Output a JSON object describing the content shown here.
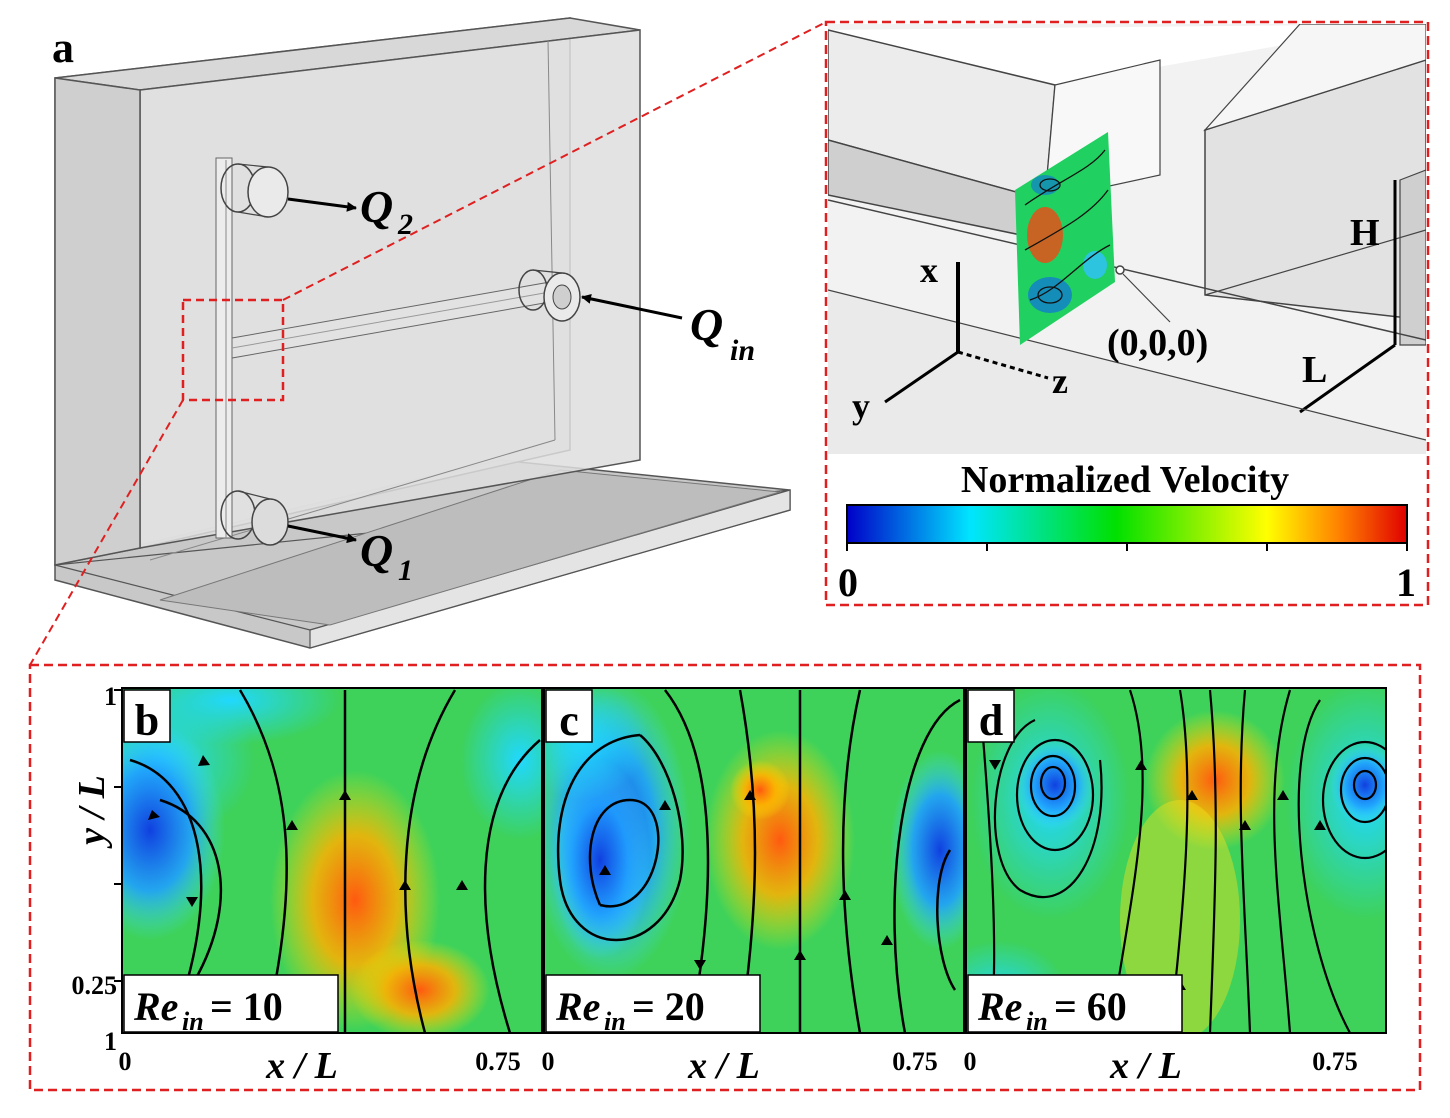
{
  "panel_a": {
    "label": "a",
    "q2": {
      "letter": "Q",
      "sub": "2"
    },
    "qin": {
      "letter": "Q",
      "sub": "in"
    },
    "q1": {
      "letter": "Q",
      "sub": "1"
    }
  },
  "inset": {
    "axis_x": "x",
    "axis_y": "y",
    "axis_z": "z",
    "origin": "(0,0,0)",
    "dim_h": "H",
    "dim_l": "L",
    "colorbar_title": "Normalized Velocity",
    "colorbar_min": "0",
    "colorbar_max": "1",
    "colorbar_colors": [
      "#0000c8",
      "#00e5ff",
      "#00e000",
      "#ffff00",
      "#ff8000",
      "#e00000"
    ]
  },
  "panels": [
    {
      "label": "b",
      "re_main": "Re",
      "re_sub": "in",
      "re_value": "= 10"
    },
    {
      "label": "c",
      "re_main": "Re",
      "re_sub": "in",
      "re_value": "= 20"
    },
    {
      "label": "d",
      "re_main": "Re",
      "re_sub": "in",
      "re_value": "= 60"
    }
  ],
  "axes": {
    "y_label": "y / L",
    "y_tick_top": "1",
    "y_tick_mid": "0.25",
    "y_tick_bottom": "1",
    "x_label": "x / L",
    "x_tick_left": "0",
    "x_tick_right": "0.75"
  }
}
